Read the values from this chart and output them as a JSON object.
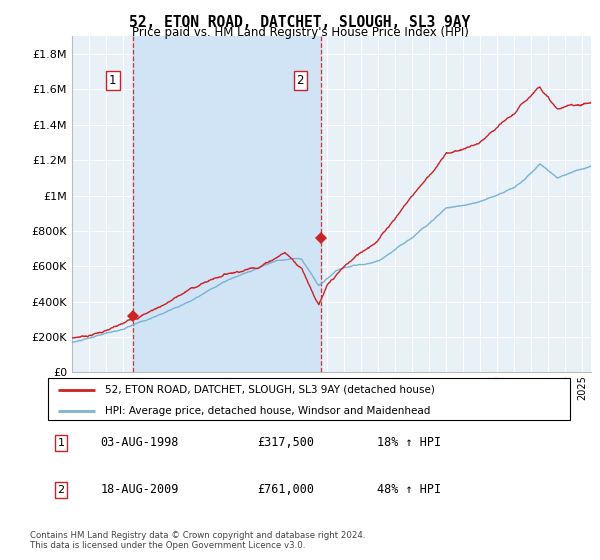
{
  "title": "52, ETON ROAD, DATCHET, SLOUGH, SL3 9AY",
  "subtitle": "Price paid vs. HM Land Registry's House Price Index (HPI)",
  "ylabel_ticks": [
    "£0",
    "£200K",
    "£400K",
    "£600K",
    "£800K",
    "£1M",
    "£1.2M",
    "£1.4M",
    "£1.6M",
    "£1.8M"
  ],
  "ytick_values": [
    0,
    200000,
    400000,
    600000,
    800000,
    1000000,
    1200000,
    1400000,
    1600000,
    1800000
  ],
  "ylim": [
    0,
    1900000
  ],
  "xlim_start": 1995.0,
  "xlim_end": 2025.5,
  "sale1_year": 1998.6,
  "sale1_price": 317500,
  "sale1_label": "1",
  "sale2_year": 2009.62,
  "sale2_price": 761000,
  "sale2_label": "2",
  "hpi_color": "#7ab3d4",
  "price_color": "#cc2222",
  "shade_color": "#d0e4f5",
  "bg_color": "#e8f0f8",
  "grid_color": "#ffffff",
  "legend_label_price": "52, ETON ROAD, DATCHET, SLOUGH, SL3 9AY (detached house)",
  "legend_label_hpi": "HPI: Average price, detached house, Windsor and Maidenhead",
  "footer": "Contains HM Land Registry data © Crown copyright and database right 2024.\nThis data is licensed under the Open Government Licence v3.0.",
  "table_rows": [
    {
      "label": "1",
      "date": "03-AUG-1998",
      "price": "£317,500",
      "hpi": "18% ↑ HPI"
    },
    {
      "label": "2",
      "date": "18-AUG-2009",
      "price": "£761,000",
      "hpi": "48% ↑ HPI"
    }
  ]
}
